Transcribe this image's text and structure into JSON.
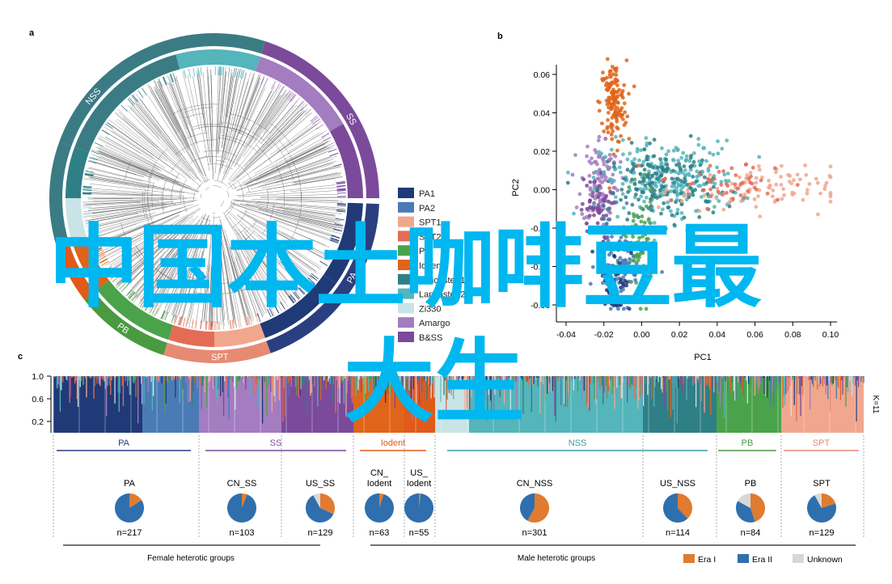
{
  "panels": {
    "a": {
      "label": "a"
    },
    "b": {
      "label": "b"
    },
    "c": {
      "label": "c"
    }
  },
  "tree": {
    "ring_labels": [
      "NSS",
      "SS",
      "PA",
      "SPT",
      "PB",
      "Iodent"
    ],
    "legend": [
      "PA1",
      "PA2",
      "SPT1",
      "SPT2",
      "PB",
      "Iodent",
      "Lancaster 1",
      "Lancaster 2",
      "Zi330",
      "Amargo",
      "B&SS"
    ]
  },
  "colors": {
    "PA1": "#203a78",
    "PA2": "#4a7bb5",
    "SPT1": "#f0a78e",
    "SPT2": "#e46c55",
    "PB": "#4aa34a",
    "Iodent": "#e0641a",
    "Lancaster 1": "#2f7f86",
    "Lancaster 2": "#54b5bb",
    "Zi330": "#c9e4e6",
    "Amargo": "#a47cc0",
    "B&SS": "#7b4a9a",
    "NSS": "#3b7b84",
    "SS": "#7b4a9a",
    "PA": "#2a3f7f",
    "SPT": "#e78a73",
    "PB_ring": "#4a9a40",
    "Iodent_ring": "#e05a1a",
    "EraI": "#e07b2f",
    "EraII": "#2f6fae",
    "Unknown": "#d8d8d8"
  },
  "chart_data": [
    {
      "type": "scatter",
      "panel": "b",
      "xlabel": "PC1",
      "ylabel": "PC2",
      "xlim": [
        -0.04,
        0.1
      ],
      "ylim": [
        -0.06,
        0.07
      ],
      "xticks": [
        "-0.04",
        "-0.02",
        "0.00",
        "0.02",
        "0.04",
        "0.06",
        "0.08",
        "0.10"
      ],
      "yticks": [
        "0.06",
        "0.04",
        "0.02",
        "0.00",
        "-0.02",
        "-0.04",
        "-0.06"
      ],
      "series": [
        {
          "name": "Iodent",
          "color": "#e0641a",
          "cx": -0.015,
          "cy": 0.045,
          "sx": 0.0035,
          "sy": 0.011,
          "n": 140
        },
        {
          "name": "Amargo",
          "color": "#a47cc0",
          "cx": -0.022,
          "cy": 0.005,
          "sx": 0.005,
          "sy": 0.012,
          "n": 110
        },
        {
          "name": "B&SS",
          "color": "#7b4a9a",
          "cx": -0.024,
          "cy": -0.01,
          "sx": 0.004,
          "sy": 0.008,
          "n": 60
        },
        {
          "name": "Lancaster 2",
          "color": "#54b5bb",
          "cx": 0.015,
          "cy": 0.005,
          "sx": 0.018,
          "sy": 0.01,
          "n": 260
        },
        {
          "name": "Lancaster 1",
          "color": "#2f7f86",
          "cx": 0.01,
          "cy": 0.002,
          "sx": 0.014,
          "sy": 0.01,
          "n": 160
        },
        {
          "name": "PB",
          "color": "#4aa34a",
          "cx": -0.002,
          "cy": -0.03,
          "sx": 0.004,
          "sy": 0.013,
          "n": 80
        },
        {
          "name": "PA2",
          "color": "#4a7bb5",
          "cx": -0.01,
          "cy": -0.038,
          "sx": 0.007,
          "sy": 0.012,
          "n": 90
        },
        {
          "name": "PA1",
          "color": "#203a78",
          "cx": -0.014,
          "cy": -0.045,
          "sx": 0.004,
          "sy": 0.01,
          "n": 70
        },
        {
          "name": "SPT1",
          "color": "#f0a78e",
          "cx": 0.06,
          "cy": 0.0,
          "sx": 0.02,
          "sy": 0.006,
          "n": 90
        },
        {
          "name": "SPT2",
          "color": "#e46c55",
          "cx": 0.045,
          "cy": 0.003,
          "sx": 0.018,
          "sy": 0.006,
          "n": 50
        }
      ]
    },
    {
      "type": "bar",
      "panel": "c",
      "ylabel_ticks": [
        "1.0",
        "0.6",
        "0.2"
      ],
      "k_label": "K=11",
      "groups": [
        {
          "name": "PA",
          "color": "#2a3f7f"
        },
        {
          "name": "SS",
          "color": "#7b4a9a"
        },
        {
          "name": "Iodent",
          "color": "#e05a1a"
        },
        {
          "name": "NSS",
          "color": "#3b9aa3"
        },
        {
          "name": "PB",
          "color": "#4a9a40"
        },
        {
          "name": "SPT",
          "color": "#e78a73"
        }
      ]
    },
    {
      "type": "pie",
      "panel": "c",
      "series_names": [
        "Era I",
        "Era II",
        "Unknown"
      ],
      "pies": [
        {
          "label": "PA",
          "n": "n=217",
          "values": [
            0.16,
            0.84,
            0.0
          ]
        },
        {
          "label": "CN_SS",
          "n": "n=103",
          "values": [
            0.06,
            0.94,
            0.0
          ]
        },
        {
          "label": "US_SS",
          "n": "n=129",
          "values": [
            0.32,
            0.6,
            0.08
          ]
        },
        {
          "label": "CN_\nIodent",
          "n": "n=63",
          "values": [
            0.05,
            0.95,
            0.0
          ]
        },
        {
          "label": "US_\nIodent",
          "n": "n=55",
          "values": [
            0.02,
            0.98,
            0.0
          ]
        },
        {
          "label": "CN_NSS",
          "n": "n=301",
          "values": [
            0.58,
            0.42,
            0.0
          ]
        },
        {
          "label": "US_NSS",
          "n": "n=114",
          "values": [
            0.38,
            0.62,
            0.0
          ]
        },
        {
          "label": "PB",
          "n": "n=84",
          "values": [
            0.45,
            0.38,
            0.17
          ]
        },
        {
          "label": "SPT",
          "n": "n=129",
          "values": [
            0.2,
            0.72,
            0.08
          ]
        }
      ]
    }
  ],
  "panel_c": {
    "female_label": "Female heterotic groups",
    "male_label": "Male heterotic groups",
    "legend": [
      {
        "name": "Era I",
        "color": "#e07b2f"
      },
      {
        "name": "Era II",
        "color": "#2f6fae"
      },
      {
        "name": "Unknown",
        "color": "#d8d8d8"
      }
    ]
  },
  "watermark": {
    "line1": "中国本土咖啡豆最",
    "line2": "大生"
  }
}
